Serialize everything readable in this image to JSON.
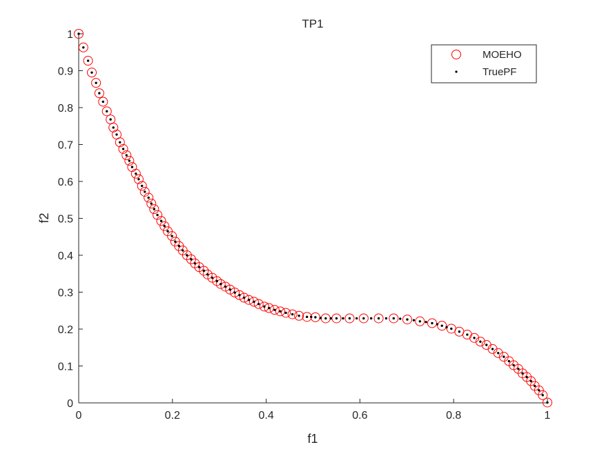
{
  "chart_data": {
    "type": "scatter",
    "title": "TP1",
    "xlabel": "f1",
    "ylabel": "f2",
    "xlim": [
      0,
      1
    ],
    "ylim": [
      0,
      1
    ],
    "xticks": [
      "0",
      "0.2",
      "0.4",
      "0.6",
      "0.8",
      "1"
    ],
    "yticks": [
      "0",
      "0.1",
      "0.2",
      "0.3",
      "0.4",
      "0.5",
      "0.6",
      "0.7",
      "0.8",
      "0.9",
      "1"
    ],
    "grid": false,
    "legend_position": "top-right",
    "series": [
      {
        "name": "MOEHO",
        "marker": "open-circle",
        "color": "#ff0000",
        "x": [
          0,
          0.01,
          0.02,
          0.028,
          0.037,
          0.044,
          0.052,
          0.06,
          0.068,
          0.074,
          0.081,
          0.088,
          0.095,
          0.102,
          0.108,
          0.114,
          0.122,
          0.128,
          0.135,
          0.141,
          0.149,
          0.155,
          0.161,
          0.168,
          0.176,
          0.183,
          0.19,
          0.199,
          0.206,
          0.214,
          0.222,
          0.231,
          0.24,
          0.248,
          0.257,
          0.267,
          0.275,
          0.285,
          0.295,
          0.303,
          0.313,
          0.323,
          0.333,
          0.343,
          0.353,
          0.363,
          0.374,
          0.384,
          0.396,
          0.406,
          0.418,
          0.43,
          0.442,
          0.456,
          0.47,
          0.487,
          0.505,
          0.527,
          0.55,
          0.578,
          0.608,
          0.64,
          0.672,
          0.701,
          0.728,
          0.754,
          0.775,
          0.795,
          0.812,
          0.829,
          0.844,
          0.857,
          0.87,
          0.883,
          0.895,
          0.907,
          0.918,
          0.928,
          0.938,
          0.947,
          0.956,
          0.965,
          0.973,
          0.982,
          0.99,
          1.0
        ],
        "y": [
          1,
          0.963,
          0.927,
          0.895,
          0.867,
          0.839,
          0.816,
          0.79,
          0.768,
          0.746,
          0.727,
          0.706,
          0.688,
          0.671,
          0.656,
          0.639,
          0.621,
          0.606,
          0.588,
          0.572,
          0.556,
          0.54,
          0.525,
          0.509,
          0.493,
          0.479,
          0.465,
          0.452,
          0.437,
          0.425,
          0.413,
          0.4,
          0.389,
          0.378,
          0.368,
          0.358,
          0.348,
          0.339,
          0.33,
          0.322,
          0.315,
          0.307,
          0.299,
          0.292,
          0.285,
          0.279,
          0.274,
          0.268,
          0.261,
          0.257,
          0.252,
          0.248,
          0.244,
          0.24,
          0.236,
          0.233,
          0.232,
          0.229,
          0.229,
          0.229,
          0.229,
          0.229,
          0.229,
          0.226,
          0.221,
          0.216,
          0.209,
          0.201,
          0.193,
          0.185,
          0.176,
          0.166,
          0.157,
          0.146,
          0.135,
          0.125,
          0.113,
          0.102,
          0.092,
          0.08,
          0.07,
          0.059,
          0.046,
          0.034,
          0.021,
          0.001
        ]
      },
      {
        "name": "TruePF",
        "marker": "dot",
        "color": "#000000",
        "x": [
          0,
          0.01,
          0.02,
          0.028,
          0.037,
          0.044,
          0.052,
          0.06,
          0.068,
          0.074,
          0.081,
          0.088,
          0.095,
          0.102,
          0.108,
          0.114,
          0.122,
          0.128,
          0.135,
          0.141,
          0.149,
          0.155,
          0.161,
          0.168,
          0.176,
          0.183,
          0.19,
          0.199,
          0.206,
          0.214,
          0.222,
          0.231,
          0.24,
          0.248,
          0.257,
          0.267,
          0.275,
          0.285,
          0.295,
          0.303,
          0.313,
          0.323,
          0.333,
          0.343,
          0.353,
          0.363,
          0.374,
          0.384,
          0.396,
          0.406,
          0.418,
          0.43,
          0.442,
          0.456,
          0.47,
          0.487,
          0.496,
          0.505,
          0.516,
          0.527,
          0.538,
          0.55,
          0.564,
          0.578,
          0.593,
          0.608,
          0.624,
          0.64,
          0.656,
          0.672,
          0.686,
          0.701,
          0.715,
          0.728,
          0.741,
          0.754,
          0.765,
          0.775,
          0.785,
          0.795,
          0.812,
          0.829,
          0.844,
          0.857,
          0.87,
          0.883,
          0.895,
          0.907,
          0.918,
          0.928,
          0.938,
          0.947,
          0.956,
          0.965,
          0.973,
          0.982,
          0.99,
          1.0
        ],
        "y": [
          1,
          0.963,
          0.927,
          0.895,
          0.867,
          0.839,
          0.816,
          0.79,
          0.768,
          0.746,
          0.727,
          0.706,
          0.688,
          0.671,
          0.656,
          0.639,
          0.621,
          0.606,
          0.588,
          0.572,
          0.556,
          0.54,
          0.525,
          0.509,
          0.493,
          0.479,
          0.465,
          0.452,
          0.437,
          0.425,
          0.413,
          0.4,
          0.389,
          0.378,
          0.368,
          0.358,
          0.348,
          0.339,
          0.33,
          0.322,
          0.315,
          0.307,
          0.299,
          0.292,
          0.285,
          0.279,
          0.274,
          0.268,
          0.261,
          0.257,
          0.252,
          0.248,
          0.244,
          0.24,
          0.236,
          0.233,
          0.233,
          0.232,
          0.23,
          0.229,
          0.229,
          0.229,
          0.229,
          0.229,
          0.229,
          0.229,
          0.229,
          0.229,
          0.229,
          0.229,
          0.228,
          0.226,
          0.224,
          0.221,
          0.219,
          0.216,
          0.213,
          0.209,
          0.205,
          0.201,
          0.193,
          0.185,
          0.176,
          0.166,
          0.157,
          0.146,
          0.135,
          0.125,
          0.113,
          0.102,
          0.092,
          0.08,
          0.07,
          0.059,
          0.046,
          0.034,
          0.021,
          0.001
        ]
      }
    ]
  }
}
